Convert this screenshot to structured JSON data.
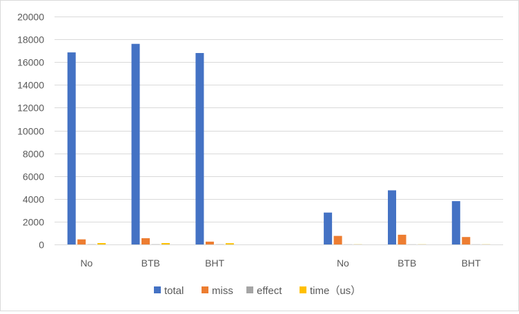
{
  "chart_data": {
    "type": "bar",
    "categories": [
      "No",
      "BTB",
      "BHT",
      "",
      "No",
      "BTB",
      "BHT"
    ],
    "series": [
      {
        "name": "total",
        "color": "#4472C4",
        "values": [
          16850,
          17600,
          16800,
          null,
          2800,
          4750,
          3800
        ]
      },
      {
        "name": "miss",
        "color": "#ED7D31",
        "values": [
          450,
          550,
          250,
          null,
          750,
          850,
          650
        ]
      },
      {
        "name": "effect",
        "color": "#A5A5A5",
        "values": [
          20,
          20,
          20,
          null,
          10,
          10,
          10
        ]
      },
      {
        "name": "time（us）",
        "color": "#FFC000",
        "values": [
          120,
          120,
          110,
          null,
          10,
          10,
          10
        ]
      }
    ],
    "y_ticks": [
      "0",
      "2000",
      "4000",
      "6000",
      "8000",
      "10000",
      "12000",
      "14000",
      "16000",
      "18000",
      "20000"
    ],
    "ylim": [
      0,
      20000
    ],
    "grid": true,
    "legend_position": "bottom",
    "title": "",
    "xlabel": "",
    "ylabel": ""
  }
}
